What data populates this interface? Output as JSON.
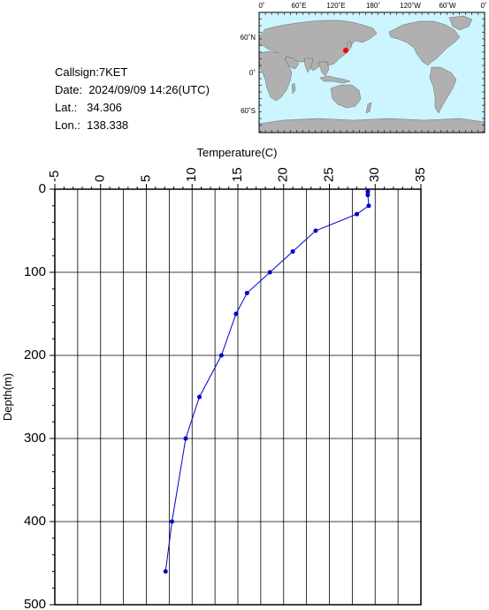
{
  "station": {
    "callsign_label": "Callsign:",
    "callsign": "7KET",
    "date_label": "Date:",
    "date": "2024/09/09 14:26(UTC)",
    "lat_label": "Lat.:",
    "lat": "34.306",
    "lon_label": "Lon.:",
    "lon": "138.338"
  },
  "map": {
    "top_labels": [
      "0˚",
      "60˚E",
      "120˚E",
      "180˚",
      "120˚W",
      "60˚W",
      "0˚"
    ],
    "side_labels": [
      "60˚N",
      "0˚",
      "60˚S"
    ],
    "land_color": "#b0b0b0",
    "ocean_color": "#ccf5ff",
    "marker_color": "#ff0000"
  },
  "chart_data": {
    "type": "line",
    "xlabel": "Temperature(C)",
    "ylabel": "Depth(m)",
    "xlim": [
      -5,
      35
    ],
    "ylim": [
      0,
      500
    ],
    "y_inverted": true,
    "x_ticks": [
      "-5",
      "0",
      "5",
      "10",
      "15",
      "20",
      "25",
      "30",
      "35"
    ],
    "y_ticks": [
      "0",
      "100",
      "200",
      "300",
      "400",
      "500"
    ],
    "grid": true,
    "line_color": "#0000cc",
    "series": [
      {
        "x": [
          29.2,
          29.2,
          29.3,
          28.0,
          23.5,
          21.0,
          18.5,
          16.0,
          14.8,
          13.2,
          10.8,
          9.3,
          7.8,
          7.1
        ],
        "y": [
          3,
          7,
          20,
          30,
          50,
          75,
          100,
          125,
          150,
          200,
          250,
          300,
          400,
          460
        ]
      }
    ]
  }
}
